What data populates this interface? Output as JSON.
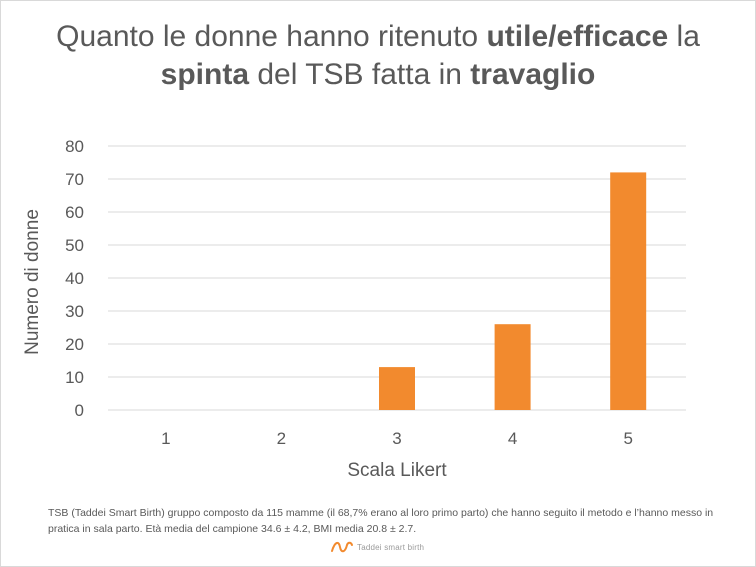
{
  "title": {
    "p1": "Quanto le donne hanno ritenuto ",
    "b1": "utile/efficace",
    "p2": " la",
    "b2": "spinta",
    "p3": " del TSB fatta in ",
    "b3": "travaglio"
  },
  "chart_data": {
    "type": "bar",
    "categories": [
      "1",
      "2",
      "3",
      "4",
      "5"
    ],
    "series": [
      {
        "values": [
          0,
          0,
          13,
          26,
          72
        ],
        "color": "#f28a2e"
      }
    ],
    "xlabel": "Scala Likert",
    "ylabel": "Numero di donne",
    "ylim": [
      0,
      80
    ],
    "yticks": [
      0,
      10,
      20,
      30,
      40,
      50,
      60,
      70,
      80
    ],
    "grid": true,
    "legend": "none"
  },
  "footnote": "TSB (Taddei Smart Birth) gruppo composto da 115 mamme (il 68,7% erano al loro primo parto) che hanno seguito il metodo e l’hanno messo in pratica in sala parto. Età media del campione 34.6 ± 4.2, BMI media 20.8 ± 2.7.",
  "brand": {
    "text": "Taddei smart birth",
    "color": "#f28a2e"
  }
}
